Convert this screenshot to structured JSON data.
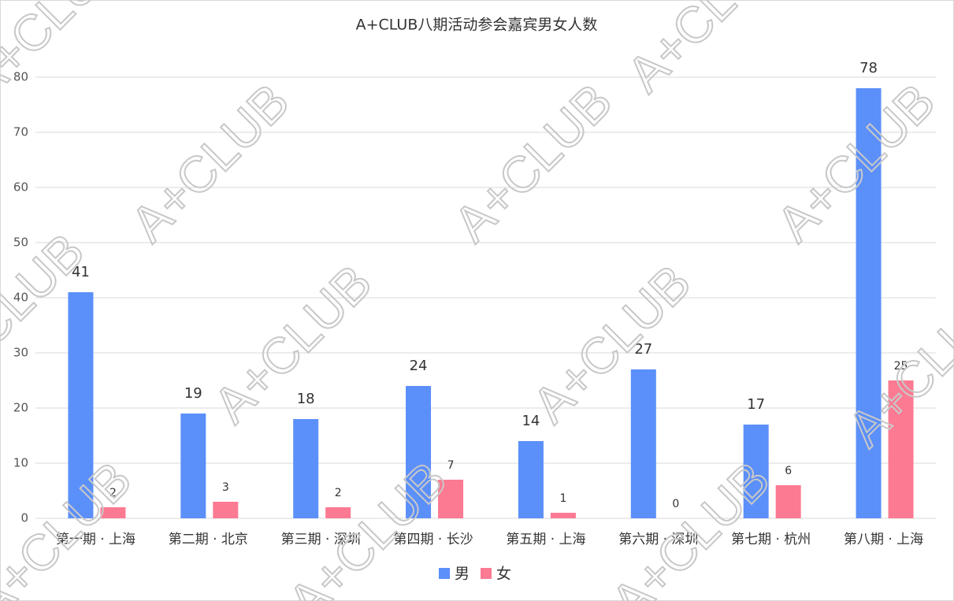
{
  "chart_data": {
    "type": "bar",
    "title": "A+CLUB八期活动参会嘉宾男女人数",
    "watermark": "A+CLUB",
    "categories": [
      "第一期 · 上海",
      "第二期 · 北京",
      "第三期 · 深圳",
      "第四期 · 长沙",
      "第五期 · 上海",
      "第六期 · 深圳",
      "第七期 · 杭州",
      "第八期 · 上海"
    ],
    "series": [
      {
        "name": "男",
        "color": "#5b8ff9",
        "values": [
          41,
          19,
          18,
          24,
          14,
          27,
          17,
          78
        ]
      },
      {
        "name": "女",
        "color": "#fc7a92",
        "values": [
          2,
          3,
          2,
          7,
          1,
          0,
          6,
          25
        ]
      }
    ],
    "ylim": [
      0,
      80
    ],
    "yticks": [
      0,
      10,
      20,
      30,
      40,
      50,
      60,
      70,
      80
    ],
    "grid": true,
    "legend": "bottom"
  }
}
